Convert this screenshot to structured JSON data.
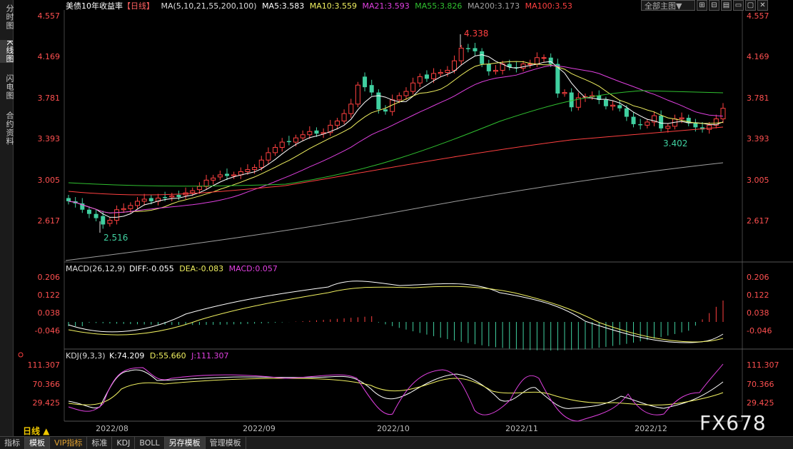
{
  "sidebar": [
    {
      "label": "分时图",
      "active": false
    },
    {
      "label": "K线图",
      "active": true
    },
    {
      "label": "闪电图",
      "active": false
    },
    {
      "label": "合约资料",
      "active": false
    }
  ],
  "header": {
    "symbol": "美债10年收益率",
    "period_tag": "【日线】",
    "ma_label": "MA(5,10,21,55,200,100)",
    "ma5": "MA5:3.583",
    "ma10": "MA10:3.559",
    "ma21": "MA21:3.593",
    "ma55": "MA55:3.826",
    "ma200": "MA200:3.173",
    "ma100": "MA100:3.53"
  },
  "top_controls": {
    "dropdown": "全部主图▼",
    "buttons": [
      "⊞",
      "⊟",
      "▤",
      "▭",
      "▢",
      "✕"
    ]
  },
  "main_axis": {
    "left": [
      "4.557",
      "4.169",
      "3.781",
      "3.393",
      "3.005",
      "2.617"
    ],
    "right": [
      "4.557",
      "4.169",
      "3.781",
      "3.393",
      "3.005",
      "2.617"
    ]
  },
  "annotations": {
    "high": "4.338",
    "low": "2.516",
    "recent_low": "3.402"
  },
  "macd": {
    "label": "MACD(26,12,9)",
    "diff": "DIFF:-0.055",
    "dea": "DEA:-0.083",
    "macd": "MACD:0.057",
    "axis": [
      "0.206",
      "0.122",
      "0.038",
      "-0.046"
    ]
  },
  "kdj": {
    "label": "KDJ(9,3,3)",
    "k": "K:74.209",
    "d": "D:55.660",
    "j": "J:111.307",
    "axis": [
      "111.307",
      "70.366",
      "29.425"
    ]
  },
  "xaxis": [
    "2022/08",
    "2022/09",
    "2022/10",
    "2022/11",
    "2022/12"
  ],
  "period_button": "日线 ▲",
  "watermark": "FX678",
  "tabs": [
    {
      "label": "指标",
      "active": false,
      "vip": false
    },
    {
      "label": "模板",
      "active": true,
      "vip": false
    },
    {
      "label": "VIP指标",
      "active": false,
      "vip": true
    },
    {
      "label": "标准",
      "active": false,
      "vip": false
    },
    {
      "label": "KDJ",
      "active": false,
      "vip": false
    },
    {
      "label": "BOLL",
      "active": false,
      "vip": false
    },
    {
      "label": "另存模板",
      "active": true,
      "vip": false
    },
    {
      "label": "管理模板",
      "active": false,
      "vip": false
    }
  ],
  "colors": {
    "up": "#ff4040",
    "down": "#40d0a0",
    "ma5": "#ffffff",
    "ma10": "#f0f060",
    "ma21": "#e040e0",
    "ma55": "#30c030",
    "ma200": "#a0a0a0",
    "ma100": "#ff4040",
    "axis_text": "#ff5050"
  },
  "chart_data": {
    "type": "candlestick",
    "ylim": [
      2.46,
      4.62
    ],
    "x_start": "2022-07-27",
    "x_end": "2022-12-22",
    "x_ticks": [
      "2022/08",
      "2022/09",
      "2022/10",
      "2022/11",
      "2022/12"
    ],
    "ohlc_close": [
      2.8,
      2.78,
      2.72,
      2.68,
      2.64,
      2.58,
      2.62,
      2.72,
      2.73,
      2.76,
      2.8,
      2.82,
      2.8,
      2.83,
      2.83,
      2.85,
      2.84,
      2.88,
      2.9,
      2.94,
      3.0,
      3.02,
      3.05,
      3.04,
      3.05,
      3.08,
      3.1,
      3.12,
      3.19,
      3.26,
      3.31,
      3.36,
      3.36,
      3.4,
      3.43,
      3.46,
      3.44,
      3.45,
      3.52,
      3.56,
      3.63,
      3.72,
      3.9,
      3.88,
      3.83,
      3.67,
      3.65,
      3.76,
      3.8,
      3.84,
      3.92,
      3.98,
      3.96,
      4.01,
      4.02,
      4.04,
      4.13,
      4.25,
      4.24,
      4.22,
      4.1,
      4.03,
      4.04,
      4.1,
      4.07,
      4.06,
      4.1,
      4.1,
      4.16,
      4.16,
      4.1,
      3.82,
      3.83,
      3.69,
      3.78,
      3.79,
      3.8,
      3.76,
      3.7,
      3.71,
      3.68,
      3.6,
      3.53,
      3.52,
      3.55,
      3.61,
      3.49,
      3.51,
      3.58,
      3.59,
      3.54,
      3.5,
      3.48,
      3.52,
      3.58,
      3.68
    ],
    "ohlc_open": [
      2.83,
      2.8,
      2.78,
      2.72,
      2.68,
      2.66,
      2.59,
      2.62,
      2.72,
      2.73,
      2.76,
      2.8,
      2.83,
      2.8,
      2.84,
      2.84,
      2.86,
      2.86,
      2.88,
      2.91,
      2.94,
      3.0,
      3.03,
      3.06,
      3.04,
      3.05,
      3.08,
      3.1,
      3.12,
      3.19,
      3.26,
      3.31,
      3.37,
      3.36,
      3.4,
      3.43,
      3.47,
      3.44,
      3.45,
      3.52,
      3.56,
      3.63,
      3.72,
      3.98,
      3.9,
      3.83,
      3.67,
      3.65,
      3.76,
      3.8,
      3.84,
      3.92,
      4.0,
      3.96,
      4.01,
      4.02,
      4.04,
      4.13,
      4.25,
      4.25,
      4.22,
      4.1,
      4.03,
      4.04,
      4.1,
      4.07,
      4.06,
      4.1,
      4.1,
      4.16,
      4.16,
      4.1,
      3.82,
      3.83,
      3.69,
      3.78,
      3.79,
      3.8,
      3.76,
      3.7,
      3.71,
      3.68,
      3.6,
      3.53,
      3.52,
      3.55,
      3.61,
      3.49,
      3.51,
      3.58,
      3.59,
      3.54,
      3.5,
      3.48,
      3.52,
      3.58
    ]
  }
}
